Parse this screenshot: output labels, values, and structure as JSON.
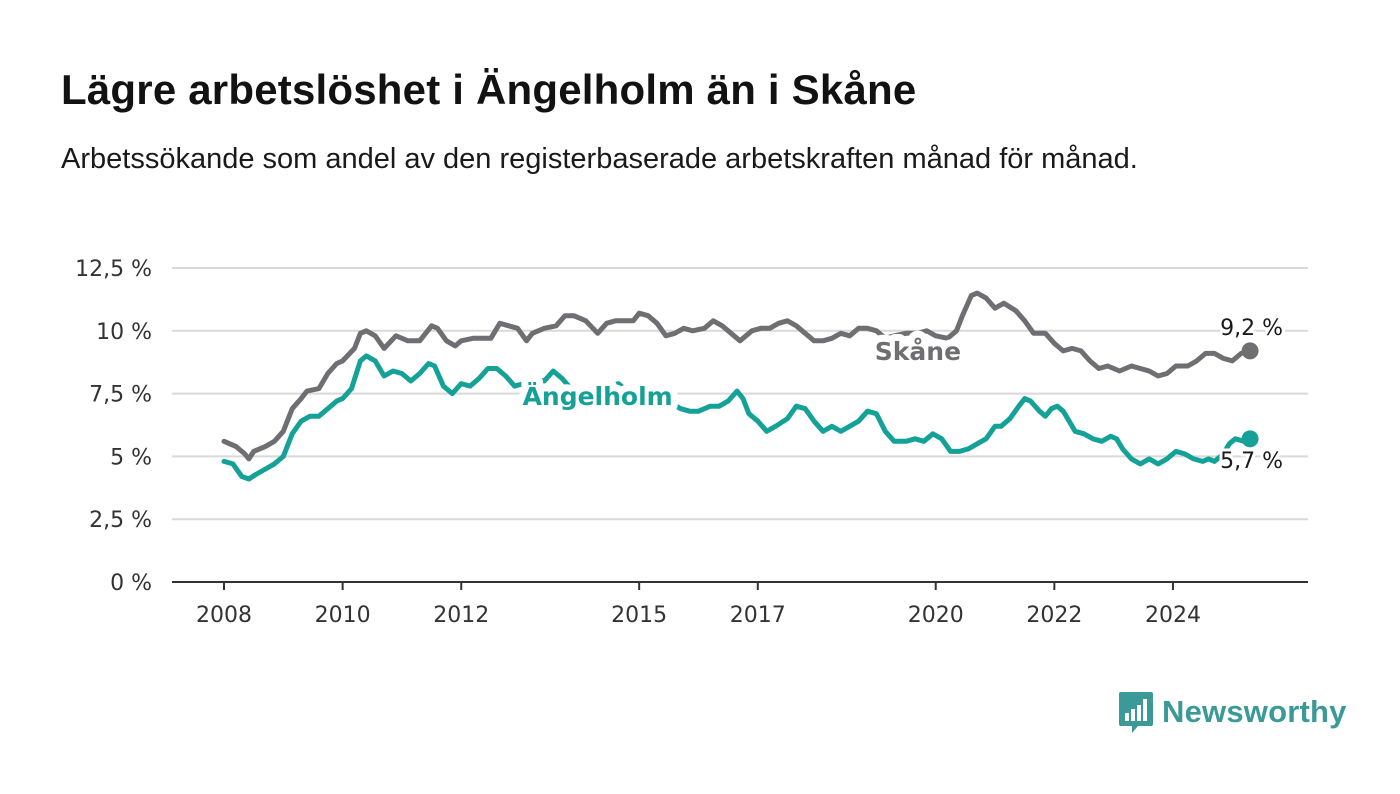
{
  "header": {
    "title": "Lägre arbetslöshet i Ängelholm än i Skåne",
    "subtitle": "Arbetssökande som andel av den registerbaserade arbetskraften månad för månad."
  },
  "logo": {
    "text": "Newsworthy",
    "icon": "bar-chart-speech-bubble-icon",
    "color": "#3b9a97"
  },
  "colors": {
    "skane": "#6e6e73",
    "angelholm": "#14a197",
    "grid": "#d9d9d9",
    "axis": "#333333"
  },
  "chart_data": {
    "type": "line",
    "title": "Lägre arbetslöshet i Ängelholm än i Skåne",
    "subtitle": "Arbetssökande som andel av den registerbaserade arbetskraften månad för månad.",
    "x_unit": "year",
    "xlim": [
      2008,
      2025.4
    ],
    "ylim": [
      0,
      12.5
    ],
    "y_ticks": [
      0,
      2.5,
      5,
      7.5,
      10,
      12.5
    ],
    "y_tick_labels": [
      "0 %",
      "2,5 %",
      "5 %",
      "7,5 %",
      "10 %",
      "12,5 %"
    ],
    "x_ticks": [
      2008,
      2010,
      2012,
      2015,
      2017,
      2020,
      2022,
      2024
    ],
    "x_tick_labels": [
      "2008",
      "2010",
      "2012",
      "2015",
      "2017",
      "2020",
      "2022",
      "2024"
    ],
    "grid": true,
    "series": [
      {
        "name": "Skåne",
        "end_label": "9,2 %",
        "color": "#6e6e73",
        "points": [
          [
            2008.0,
            5.6
          ],
          [
            2008.2,
            5.4
          ],
          [
            2008.35,
            5.1
          ],
          [
            2008.42,
            4.9
          ],
          [
            2008.5,
            5.2
          ],
          [
            2008.7,
            5.4
          ],
          [
            2008.85,
            5.6
          ],
          [
            2009.0,
            6.0
          ],
          [
            2009.15,
            6.9
          ],
          [
            2009.3,
            7.3
          ],
          [
            2009.4,
            7.6
          ],
          [
            2009.6,
            7.7
          ],
          [
            2009.75,
            8.3
          ],
          [
            2009.9,
            8.7
          ],
          [
            2010.0,
            8.8
          ],
          [
            2010.2,
            9.3
          ],
          [
            2010.3,
            9.9
          ],
          [
            2010.4,
            10.0
          ],
          [
            2010.55,
            9.8
          ],
          [
            2010.7,
            9.3
          ],
          [
            2010.9,
            9.8
          ],
          [
            2011.1,
            9.6
          ],
          [
            2011.3,
            9.6
          ],
          [
            2011.5,
            10.2
          ],
          [
            2011.6,
            10.1
          ],
          [
            2011.75,
            9.6
          ],
          [
            2011.9,
            9.4
          ],
          [
            2012.0,
            9.6
          ],
          [
            2012.2,
            9.7
          ],
          [
            2012.5,
            9.7
          ],
          [
            2012.65,
            10.3
          ],
          [
            2012.8,
            10.2
          ],
          [
            2012.95,
            10.1
          ],
          [
            2013.1,
            9.6
          ],
          [
            2013.2,
            9.9
          ],
          [
            2013.4,
            10.1
          ],
          [
            2013.6,
            10.2
          ],
          [
            2013.75,
            10.6
          ],
          [
            2013.9,
            10.6
          ],
          [
            2014.1,
            10.4
          ],
          [
            2014.3,
            9.9
          ],
          [
            2014.45,
            10.3
          ],
          [
            2014.6,
            10.4
          ],
          [
            2014.9,
            10.4
          ],
          [
            2015.0,
            10.7
          ],
          [
            2015.15,
            10.6
          ],
          [
            2015.3,
            10.3
          ],
          [
            2015.45,
            9.8
          ],
          [
            2015.6,
            9.9
          ],
          [
            2015.75,
            10.1
          ],
          [
            2015.9,
            10.0
          ],
          [
            2016.1,
            10.1
          ],
          [
            2016.25,
            10.4
          ],
          [
            2016.4,
            10.2
          ],
          [
            2016.55,
            9.9
          ],
          [
            2016.7,
            9.6
          ],
          [
            2016.9,
            10.0
          ],
          [
            2017.05,
            10.1
          ],
          [
            2017.2,
            10.1
          ],
          [
            2017.35,
            10.3
          ],
          [
            2017.5,
            10.4
          ],
          [
            2017.65,
            10.2
          ],
          [
            2017.8,
            9.9
          ],
          [
            2017.95,
            9.6
          ],
          [
            2018.1,
            9.6
          ],
          [
            2018.25,
            9.7
          ],
          [
            2018.4,
            9.9
          ],
          [
            2018.55,
            9.8
          ],
          [
            2018.7,
            10.1
          ],
          [
            2018.85,
            10.1
          ],
          [
            2019.0,
            10.0
          ],
          [
            2019.15,
            9.7
          ],
          [
            2019.3,
            9.8
          ],
          [
            2019.5,
            9.9
          ],
          [
            2019.7,
            9.9
          ],
          [
            2019.85,
            10.0
          ],
          [
            2020.0,
            9.8
          ],
          [
            2020.2,
            9.7
          ],
          [
            2020.35,
            10.0
          ],
          [
            2020.45,
            10.6
          ],
          [
            2020.6,
            11.4
          ],
          [
            2020.7,
            11.5
          ],
          [
            2020.85,
            11.3
          ],
          [
            2021.0,
            10.9
          ],
          [
            2021.15,
            11.1
          ],
          [
            2021.35,
            10.8
          ],
          [
            2021.5,
            10.4
          ],
          [
            2021.65,
            9.9
          ],
          [
            2021.85,
            9.9
          ],
          [
            2022.0,
            9.5
          ],
          [
            2022.15,
            9.2
          ],
          [
            2022.3,
            9.3
          ],
          [
            2022.45,
            9.2
          ],
          [
            2022.6,
            8.8
          ],
          [
            2022.75,
            8.5
          ],
          [
            2022.9,
            8.6
          ],
          [
            2023.1,
            8.4
          ],
          [
            2023.3,
            8.6
          ],
          [
            2023.45,
            8.5
          ],
          [
            2023.6,
            8.4
          ],
          [
            2023.75,
            8.2
          ],
          [
            2023.9,
            8.3
          ],
          [
            2024.05,
            8.6
          ],
          [
            2024.25,
            8.6
          ],
          [
            2024.4,
            8.8
          ],
          [
            2024.55,
            9.1
          ],
          [
            2024.7,
            9.1
          ],
          [
            2024.85,
            8.9
          ],
          [
            2025.0,
            8.8
          ],
          [
            2025.15,
            9.1
          ],
          [
            2025.3,
            9.2
          ]
        ]
      },
      {
        "name": "Ängelholm",
        "end_label": "5,7 %",
        "color": "#14a197",
        "points": [
          [
            2008.0,
            4.8
          ],
          [
            2008.15,
            4.7
          ],
          [
            2008.3,
            4.2
          ],
          [
            2008.42,
            4.1
          ],
          [
            2008.55,
            4.3
          ],
          [
            2008.7,
            4.5
          ],
          [
            2008.85,
            4.7
          ],
          [
            2009.0,
            5.0
          ],
          [
            2009.15,
            5.9
          ],
          [
            2009.3,
            6.4
          ],
          [
            2009.45,
            6.6
          ],
          [
            2009.6,
            6.6
          ],
          [
            2009.75,
            6.9
          ],
          [
            2009.9,
            7.2
          ],
          [
            2010.0,
            7.3
          ],
          [
            2010.15,
            7.7
          ],
          [
            2010.3,
            8.8
          ],
          [
            2010.4,
            9.0
          ],
          [
            2010.55,
            8.8
          ],
          [
            2010.7,
            8.2
          ],
          [
            2010.85,
            8.4
          ],
          [
            2011.0,
            8.3
          ],
          [
            2011.15,
            8.0
          ],
          [
            2011.3,
            8.3
          ],
          [
            2011.45,
            8.7
          ],
          [
            2011.55,
            8.6
          ],
          [
            2011.7,
            7.8
          ],
          [
            2011.85,
            7.5
          ],
          [
            2012.0,
            7.9
          ],
          [
            2012.15,
            7.8
          ],
          [
            2012.3,
            8.1
          ],
          [
            2012.45,
            8.5
          ],
          [
            2012.6,
            8.5
          ],
          [
            2012.75,
            8.2
          ],
          [
            2012.9,
            7.8
          ],
          [
            2013.05,
            7.9
          ],
          [
            2013.2,
            8.1
          ],
          [
            2013.4,
            8.0
          ],
          [
            2013.55,
            8.4
          ],
          [
            2013.7,
            8.1
          ],
          [
            2013.85,
            7.7
          ],
          [
            2014.0,
            7.3
          ],
          [
            2014.15,
            7.0
          ],
          [
            2014.3,
            7.0
          ],
          [
            2014.5,
            7.8
          ],
          [
            2014.65,
            7.9
          ],
          [
            2014.8,
            7.6
          ],
          [
            2014.95,
            7.0
          ],
          [
            2015.1,
            7.2
          ],
          [
            2015.25,
            7.7
          ],
          [
            2015.4,
            7.7
          ],
          [
            2015.55,
            7.1
          ],
          [
            2015.7,
            6.9
          ],
          [
            2015.85,
            6.8
          ],
          [
            2016.0,
            6.8
          ],
          [
            2016.2,
            7.0
          ],
          [
            2016.35,
            7.0
          ],
          [
            2016.5,
            7.2
          ],
          [
            2016.65,
            7.6
          ],
          [
            2016.75,
            7.3
          ],
          [
            2016.85,
            6.7
          ],
          [
            2017.0,
            6.4
          ],
          [
            2017.15,
            6.0
          ],
          [
            2017.3,
            6.2
          ],
          [
            2017.5,
            6.5
          ],
          [
            2017.65,
            7.0
          ],
          [
            2017.8,
            6.9
          ],
          [
            2017.95,
            6.4
          ],
          [
            2018.1,
            6.0
          ],
          [
            2018.25,
            6.2
          ],
          [
            2018.4,
            6.0
          ],
          [
            2018.55,
            6.2
          ],
          [
            2018.7,
            6.4
          ],
          [
            2018.85,
            6.8
          ],
          [
            2019.0,
            6.7
          ],
          [
            2019.15,
            6.0
          ],
          [
            2019.3,
            5.6
          ],
          [
            2019.5,
            5.6
          ],
          [
            2019.65,
            5.7
          ],
          [
            2019.8,
            5.6
          ],
          [
            2019.95,
            5.9
          ],
          [
            2020.1,
            5.7
          ],
          [
            2020.25,
            5.2
          ],
          [
            2020.4,
            5.2
          ],
          [
            2020.55,
            5.3
          ],
          [
            2020.7,
            5.5
          ],
          [
            2020.85,
            5.7
          ],
          [
            2021.0,
            6.2
          ],
          [
            2021.1,
            6.2
          ],
          [
            2021.25,
            6.5
          ],
          [
            2021.4,
            7.0
          ],
          [
            2021.5,
            7.3
          ],
          [
            2021.6,
            7.2
          ],
          [
            2021.75,
            6.8
          ],
          [
            2021.85,
            6.6
          ],
          [
            2021.95,
            6.9
          ],
          [
            2022.05,
            7.0
          ],
          [
            2022.15,
            6.8
          ],
          [
            2022.25,
            6.4
          ],
          [
            2022.35,
            6.0
          ],
          [
            2022.5,
            5.9
          ],
          [
            2022.65,
            5.7
          ],
          [
            2022.8,
            5.6
          ],
          [
            2022.95,
            5.8
          ],
          [
            2023.05,
            5.7
          ],
          [
            2023.15,
            5.3
          ],
          [
            2023.3,
            4.9
          ],
          [
            2023.45,
            4.7
          ],
          [
            2023.6,
            4.9
          ],
          [
            2023.75,
            4.7
          ],
          [
            2023.9,
            4.9
          ],
          [
            2024.05,
            5.2
          ],
          [
            2024.2,
            5.1
          ],
          [
            2024.35,
            4.9
          ],
          [
            2024.5,
            4.8
          ],
          [
            2024.6,
            4.9
          ],
          [
            2024.7,
            4.8
          ],
          [
            2024.85,
            5.1
          ],
          [
            2024.95,
            5.5
          ],
          [
            2025.05,
            5.7
          ],
          [
            2025.2,
            5.6
          ],
          [
            2025.3,
            5.7
          ]
        ]
      }
    ],
    "annotations": [
      {
        "text": "Skåne",
        "series": "Skåne",
        "x": 2019.7,
        "y": 9.2
      },
      {
        "text": "Ängelholm",
        "series": "Ängelholm",
        "x": 2014.3,
        "y": 7.4
      }
    ]
  }
}
